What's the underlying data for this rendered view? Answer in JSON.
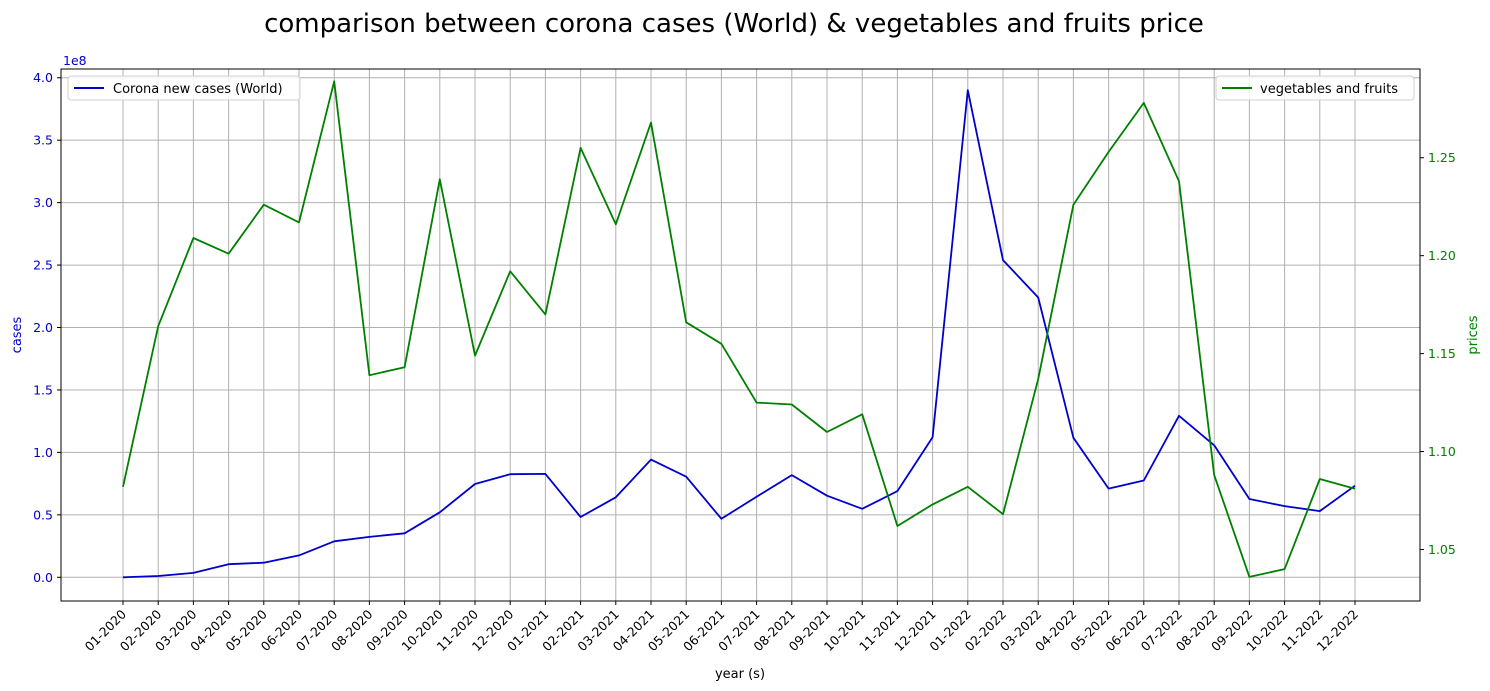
{
  "chart_data": {
    "type": "line",
    "title": "comparison between corona cases (World) & vegetables and fruits price",
    "xlabel": "year (s)",
    "y_left": {
      "label": "cases",
      "color": "#0000cc",
      "offset_text": "1e8",
      "scale_factor": 100000000,
      "ticks": [
        0.0,
        0.5,
        1.0,
        1.5,
        2.0,
        2.5,
        3.0,
        3.5,
        4.0
      ],
      "tick_labels": [
        "0.0",
        "0.5",
        "1.0",
        "1.5",
        "2.0",
        "2.5",
        "3.0",
        "3.5",
        "4.0"
      ],
      "range": [
        -0.19,
        4.07
      ]
    },
    "y_right": {
      "label": "prices",
      "color": "#008000",
      "ticks": [
        1.05,
        1.1,
        1.15,
        1.2,
        1.25
      ],
      "tick_labels": [
        "1.05",
        "1.10",
        "1.15",
        "1.20",
        "1.25"
      ],
      "range": [
        1.0237,
        1.2953
      ]
    },
    "categories": [
      "01-2020",
      "02-2020",
      "03-2020",
      "04-2020",
      "05-2020",
      "06-2020",
      "07-2020",
      "08-2020",
      "09-2020",
      "10-2020",
      "11-2020",
      "12-2020",
      "01-2021",
      "02-2021",
      "03-2021",
      "04-2021",
      "05-2021",
      "06-2021",
      "07-2021",
      "08-2021",
      "09-2021",
      "10-2021",
      "11-2021",
      "12-2021",
      "01-2022",
      "02-2022",
      "03-2022",
      "04-2022",
      "05-2022",
      "06-2022",
      "07-2022",
      "08-2022",
      "09-2022",
      "10-2022",
      "11-2022",
      "12-2022"
    ],
    "series": [
      {
        "name": "Corona new cases (World)",
        "axis": "left",
        "color": "#0000cc",
        "values": [
          0.0,
          0.01,
          0.035,
          0.105,
          0.117,
          0.175,
          0.288,
          0.323,
          0.352,
          0.52,
          0.747,
          0.825,
          0.828,
          0.483,
          0.64,
          0.942,
          0.805,
          0.468,
          0.645,
          0.818,
          0.653,
          0.548,
          0.69,
          1.122,
          3.9,
          2.54,
          2.24,
          1.117,
          0.71,
          0.775,
          1.293,
          1.057,
          0.627,
          0.57,
          0.53,
          0.733
        ]
      },
      {
        "name": "vegetables and fruits",
        "axis": "right",
        "color": "#008000",
        "values": [
          1.082,
          1.164,
          1.209,
          1.201,
          1.226,
          1.217,
          1.289,
          1.139,
          1.143,
          1.239,
          1.149,
          1.192,
          1.17,
          1.255,
          1.216,
          1.268,
          1.166,
          1.155,
          1.125,
          1.124,
          1.11,
          1.119,
          1.062,
          1.073,
          1.082,
          1.068,
          1.137,
          1.226,
          1.253,
          1.278,
          1.238,
          1.088,
          1.036,
          1.04,
          1.086,
          1.081
        ]
      }
    ],
    "grid": true,
    "legend_left_position": "upper-left",
    "legend_right_position": "upper-right"
  }
}
